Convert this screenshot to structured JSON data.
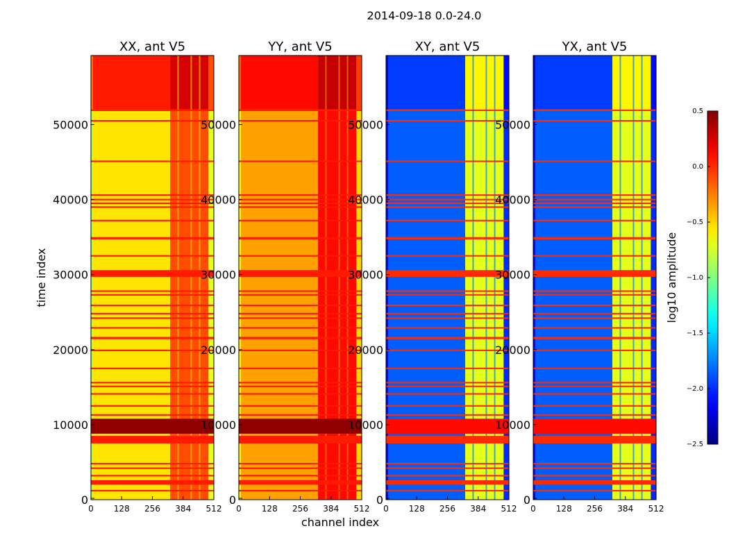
{
  "chart_data": {
    "type": "heatmap",
    "title": "2014-09-18 0.0-24.0",
    "xlabel": "channel index",
    "ylabel": "time index",
    "xlim": [
      0,
      512
    ],
    "ylim": [
      0,
      59200
    ],
    "xticks": [
      "0",
      "128",
      "256",
      "384",
      "512"
    ],
    "yticks": [
      "0",
      "10000",
      "20000",
      "30000",
      "40000",
      "50000"
    ],
    "ytick_values": [
      0,
      10000,
      20000,
      30000,
      40000,
      50000
    ],
    "xtick_values": [
      0,
      128,
      256,
      384,
      512
    ],
    "colormap": "jet",
    "colorbar": {
      "label": "log10 amplitude",
      "range": [
        -2.5,
        0.5
      ],
      "ticks": [
        "0.5",
        "0.0",
        "−0.5",
        "−1.0",
        "−1.5",
        "−2.0",
        "−2.5"
      ],
      "tick_values": [
        0.5,
        0.0,
        -0.5,
        -1.0,
        -1.5,
        -2.0,
        -2.5
      ]
    },
    "hot_channels": [
      330,
      490
    ],
    "top_block_start": 52000,
    "panels": [
      {
        "title": "XX, ant V5",
        "bg": -0.55,
        "hot": -0.1,
        "top_bg": 0.05,
        "top_hot": 0.25,
        "block": 0.45,
        "stripe": 0.05
      },
      {
        "title": "YY, ant V5",
        "bg": -0.35,
        "hot": 0.1,
        "top_bg": 0.1,
        "top_hot": 0.3,
        "block": 0.45,
        "stripe": 0.05
      },
      {
        "title": "XY, ant V5",
        "bg": -1.85,
        "hot": -0.7,
        "top_bg": -1.95,
        "top_hot": -0.6,
        "block": 0.1,
        "stripe": 0.0
      },
      {
        "title": "YX, ant V5",
        "bg": -1.85,
        "hot": -0.7,
        "top_bg": -1.95,
        "top_hot": -0.6,
        "block": 0.1,
        "stripe": 0.0
      }
    ],
    "stripes": [
      [
        1100,
        1300
      ],
      [
        2000,
        2600
      ],
      [
        3100,
        3300
      ],
      [
        4100,
        4300
      ],
      [
        4700,
        4900
      ],
      [
        7500,
        8500
      ],
      [
        11200,
        11400
      ],
      [
        12400,
        12600
      ],
      [
        14000,
        14200
      ],
      [
        15000,
        15200
      ],
      [
        15500,
        15700
      ],
      [
        17400,
        17600
      ],
      [
        19800,
        20000
      ],
      [
        21400,
        21700
      ],
      [
        22800,
        23000
      ],
      [
        24100,
        24300
      ],
      [
        24700,
        24900
      ],
      [
        25800,
        26000
      ],
      [
        27200,
        27400
      ],
      [
        27700,
        27900
      ],
      [
        29700,
        30600
      ],
      [
        32400,
        32600
      ],
      [
        34700,
        35000
      ],
      [
        37100,
        37300
      ],
      [
        38900,
        39100
      ],
      [
        39400,
        39600
      ],
      [
        39900,
        40100
      ],
      [
        40500,
        40700
      ],
      [
        45000,
        45200
      ],
      [
        50400,
        50600
      ],
      [
        51800,
        52000
      ]
    ],
    "block_range": [
      8800,
      10800
    ]
  }
}
